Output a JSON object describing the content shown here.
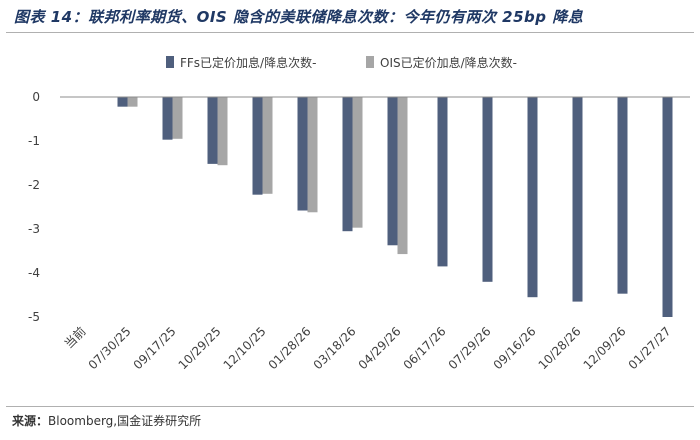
{
  "title": "图表 14：联邦利率期货、OIS 隐含的美联储降息次数：今年仍有两次 25bp 降息",
  "source": {
    "label": "来源：",
    "text": "Bloomberg,国金证券研究所"
  },
  "colors": {
    "ffs": "#4f5f7d",
    "ois": "#a6a6a6",
    "axis": "#8c8c8c",
    "text": "#404040",
    "title": "#1f3864"
  },
  "chart_data": {
    "type": "bar",
    "title": "联邦利率期货、OIS 隐含的美联储降息次数：今年仍有两次 25bp 降息",
    "xlabel": "",
    "ylabel": "",
    "ylim": [
      -5,
      0
    ],
    "yticks": [
      0,
      -1,
      -2,
      -3,
      -4,
      -5
    ],
    "grid": false,
    "legend_position": "top",
    "categories": [
      "当前",
      "07/30/25",
      "09/17/25",
      "10/29/25",
      "12/10/25",
      "01/28/26",
      "03/18/26",
      "04/29/26",
      "06/17/26",
      "07/29/26",
      "09/16/26",
      "10/28/26",
      "12/09/26",
      "01/27/27"
    ],
    "series": [
      {
        "name": "FFs已定价加息/降息次数-",
        "values": [
          0,
          -0.22,
          -0.97,
          -1.52,
          -2.22,
          -2.58,
          -3.05,
          -3.37,
          -3.85,
          -4.2,
          -4.55,
          -4.65,
          -4.47,
          -5.0
        ]
      },
      {
        "name": "OIS已定价加息/降息次数-",
        "values": [
          0,
          -0.22,
          -0.95,
          -1.55,
          -2.2,
          -2.62,
          -2.97,
          -3.57,
          null,
          null,
          null,
          null,
          null,
          null
        ]
      }
    ]
  }
}
